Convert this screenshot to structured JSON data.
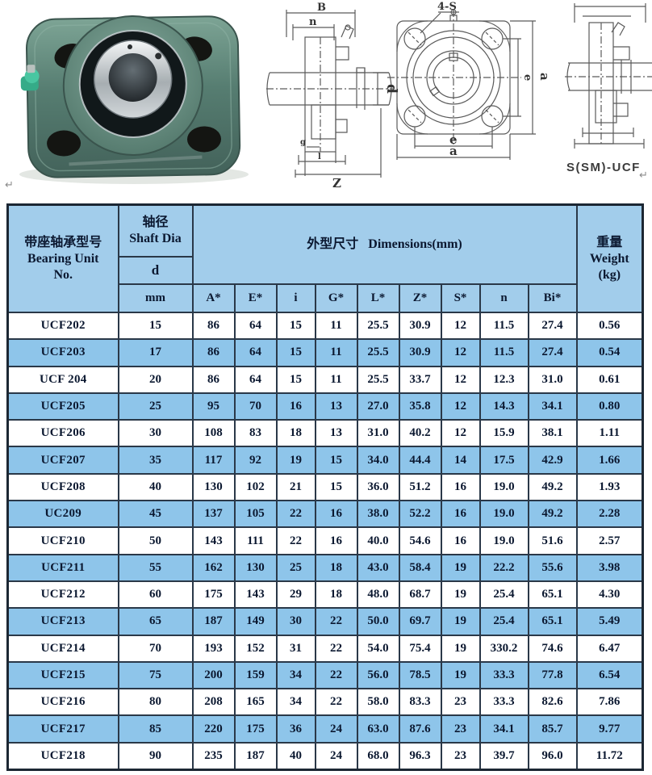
{
  "colors": {
    "header_bg": "#a2cdeb",
    "alt_row_bg": "#8ec5ea",
    "table_border": "#2a3848",
    "text": "#0b1830",
    "bearing_green": "#527a6e",
    "grease_fitting_green": "#45c3a0",
    "steel_silver": "#c8cdd0"
  },
  "diagrams": {
    "side": {
      "b": "B",
      "n": "n",
      "d": "d",
      "g": "g",
      "l": "l",
      "z": "Z"
    },
    "front": {
      "bolt_holes": "4-S",
      "e_right": "e",
      "a_right": "a",
      "e_bottom": "e",
      "a_bottom": "a"
    },
    "model": "S(SM)-UCF",
    "return_mark": "↵"
  },
  "table": {
    "header": {
      "col1_zh": "带座轴承型号",
      "col1_en1": "Bearing Unit",
      "col1_en2": "No.",
      "col2_zh": "轴径",
      "col2_en": "Shaft Dia",
      "col2_d": "d",
      "col2_unit": "mm",
      "dims_zh": "外型尺寸",
      "dims_en": "Dimensions(mm)",
      "dim_cols": [
        "A*",
        "E*",
        "i",
        "G*",
        "L*",
        "Z*",
        "S*",
        "n",
        "Bi*"
      ],
      "weight_zh": "重量",
      "weight_en": "Weight",
      "weight_unit": "(kg)"
    },
    "rows": [
      {
        "no": "UCF202",
        "d": "15",
        "vals": [
          "86",
          "64",
          "15",
          "11",
          "25.5",
          "30.9",
          "12",
          "11.5",
          "27.4"
        ],
        "wt": "0.56"
      },
      {
        "no": "UCF203",
        "d": "17",
        "vals": [
          "86",
          "64",
          "15",
          "11",
          "25.5",
          "30.9",
          "12",
          "11.5",
          "27.4"
        ],
        "wt": "0.54"
      },
      {
        "no": "UCF 204",
        "d": "20",
        "vals": [
          "86",
          "64",
          "15",
          "11",
          "25.5",
          "33.7",
          "12",
          "12.3",
          "31.0"
        ],
        "wt": "0.61"
      },
      {
        "no": "UCF205",
        "d": "25",
        "vals": [
          "95",
          "70",
          "16",
          "13",
          "27.0",
          "35.8",
          "12",
          "14.3",
          "34.1"
        ],
        "wt": "0.80"
      },
      {
        "no": "UCF206",
        "d": "30",
        "vals": [
          "108",
          "83",
          "18",
          "13",
          "31.0",
          "40.2",
          "12",
          "15.9",
          "38.1"
        ],
        "wt": "1.11"
      },
      {
        "no": "UCF207",
        "d": "35",
        "vals": [
          "117",
          "92",
          "19",
          "15",
          "34.0",
          "44.4",
          "14",
          "17.5",
          "42.9"
        ],
        "wt": "1.66"
      },
      {
        "no": "UCF208",
        "d": "40",
        "vals": [
          "130",
          "102",
          "21",
          "15",
          "36.0",
          "51.2",
          "16",
          "19.0",
          "49.2"
        ],
        "wt": "1.93"
      },
      {
        "no": "UC209",
        "d": "45",
        "vals": [
          "137",
          "105",
          "22",
          "16",
          "38.0",
          "52.2",
          "16",
          "19.0",
          "49.2"
        ],
        "wt": "2.28"
      },
      {
        "no": "UCF210",
        "d": "50",
        "vals": [
          "143",
          "111",
          "22",
          "16",
          "40.0",
          "54.6",
          "16",
          "19.0",
          "51.6"
        ],
        "wt": "2.57"
      },
      {
        "no": "UCF211",
        "d": "55",
        "vals": [
          "162",
          "130",
          "25",
          "18",
          "43.0",
          "58.4",
          "19",
          "22.2",
          "55.6"
        ],
        "wt": "3.98"
      },
      {
        "no": "UCF212",
        "d": "60",
        "vals": [
          "175",
          "143",
          "29",
          "18",
          "48.0",
          "68.7",
          "19",
          "25.4",
          "65.1"
        ],
        "wt": "4.30"
      },
      {
        "no": "UCF213",
        "d": "65",
        "vals": [
          "187",
          "149",
          "30",
          "22",
          "50.0",
          "69.7",
          "19",
          "25.4",
          "65.1"
        ],
        "wt": "5.49"
      },
      {
        "no": "UCF214",
        "d": "70",
        "vals": [
          "193",
          "152",
          "31",
          "22",
          "54.0",
          "75.4",
          "19",
          "330.2",
          "74.6"
        ],
        "wt": "6.47"
      },
      {
        "no": "UCF215",
        "d": "75",
        "vals": [
          "200",
          "159",
          "34",
          "22",
          "56.0",
          "78.5",
          "19",
          "33.3",
          "77.8"
        ],
        "wt": "6.54"
      },
      {
        "no": "UCF216",
        "d": "80",
        "vals": [
          "208",
          "165",
          "34",
          "22",
          "58.0",
          "83.3",
          "23",
          "33.3",
          "82.6"
        ],
        "wt": "7.86"
      },
      {
        "no": "UCF217",
        "d": "85",
        "vals": [
          "220",
          "175",
          "36",
          "24",
          "63.0",
          "87.6",
          "23",
          "34.1",
          "85.7"
        ],
        "wt": "9.77"
      },
      {
        "no": "UCF218",
        "d": "90",
        "vals": [
          "235",
          "187",
          "40",
          "24",
          "68.0",
          "96.3",
          "23",
          "39.7",
          "96.0"
        ],
        "wt": "11.72"
      }
    ]
  }
}
